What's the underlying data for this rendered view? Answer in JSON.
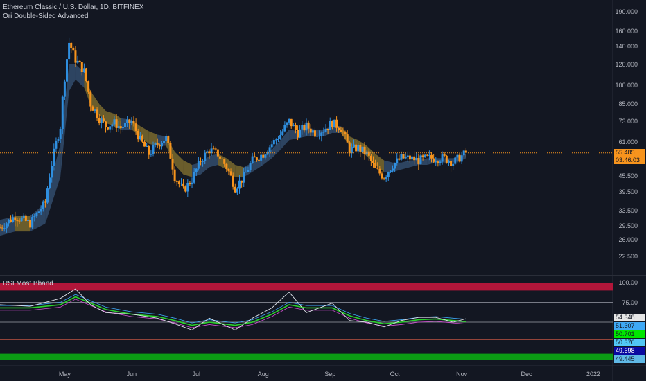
{
  "header": {
    "symbol": "Ethereum Classic / U.S. Dollar, 1D, BITFINEX",
    "indicator_main": "Ori Double-Sided Advanced",
    "indicator_sub": "RSI Most Bband"
  },
  "colors": {
    "background": "#131722",
    "bull": "#2f8fe0",
    "bear": "#f7941d",
    "cloud_bull": "#324c6c",
    "cloud_bear": "#7a6a2e",
    "rsi_line": "#e0e3eb",
    "rsi_upper_band": "#b2163a",
    "rsi_lower_band": "#0b9c14"
  },
  "price_axis": {
    "ticks": [
      "190.000",
      "160.000",
      "140.000",
      "120.000",
      "100.000",
      "85.000",
      "73.000",
      "61.000",
      "45.500",
      "39.500",
      "33.500",
      "29.500",
      "26.000",
      "22.500"
    ],
    "last_price": "55.485",
    "countdown": "03:46:03"
  },
  "rsi_axis": {
    "ticks": [
      "100.00",
      "75.00"
    ],
    "badges": [
      {
        "text": "54.348",
        "bg": "#e6e6e6",
        "fg": "#131722"
      },
      {
        "text": "51.307",
        "bg": "#3fa9f5",
        "fg": "#131722"
      },
      {
        "text": "50.701",
        "bg": "#00e600",
        "fg": "#131722"
      },
      {
        "text": "50.376",
        "bg": "#52c8f5",
        "fg": "#131722"
      },
      {
        "text": "49.698",
        "bg": "#0a0aa0",
        "fg": "#ffffff"
      },
      {
        "text": "49.445",
        "bg": "#5fb8e6",
        "fg": "#131722"
      }
    ]
  },
  "time_axis": {
    "ticks": [
      "May",
      "Jun",
      "Jul",
      "Aug",
      "Sep",
      "Oct",
      "Nov",
      "Dec",
      "2022"
    ]
  },
  "chart_data": [
    {
      "type": "candlestick",
      "title": "Ethereum Classic / U.S. Dollar, 1D, BITFINEX",
      "scale": "log",
      "ylim": [
        20,
        200
      ],
      "x_start": "2021-04-01",
      "x_end": "2021-11-03",
      "x": [
        "2021-04-01",
        "2021-04-08",
        "2021-04-15",
        "2021-04-22",
        "2021-04-29",
        "2021-05-03",
        "2021-05-06",
        "2021-05-10",
        "2021-05-13",
        "2021-05-17",
        "2021-05-20",
        "2021-05-24",
        "2021-05-27",
        "2021-06-01",
        "2021-06-05",
        "2021-06-09",
        "2021-06-13",
        "2021-06-17",
        "2021-06-21",
        "2021-06-25",
        "2021-06-29",
        "2021-07-03",
        "2021-07-07",
        "2021-07-11",
        "2021-07-15",
        "2021-07-19",
        "2021-07-23",
        "2021-07-27",
        "2021-08-01",
        "2021-08-05",
        "2021-08-09",
        "2021-08-13",
        "2021-08-17",
        "2021-08-21",
        "2021-08-25",
        "2021-08-29",
        "2021-09-02",
        "2021-09-06",
        "2021-09-10",
        "2021-09-14",
        "2021-09-18",
        "2021-09-22",
        "2021-09-26",
        "2021-09-30",
        "2021-10-04",
        "2021-10-08",
        "2021-10-12",
        "2021-10-16",
        "2021-10-20",
        "2021-10-24",
        "2021-10-28",
        "2021-11-01",
        "2021-11-03"
      ],
      "close": [
        29,
        32,
        30,
        36,
        70,
        145,
        125,
        113,
        85,
        75,
        70,
        72,
        69,
        73,
        62,
        55,
        60,
        63,
        45,
        40,
        44,
        52,
        57,
        55,
        49,
        41,
        45,
        52,
        55,
        60,
        65,
        73,
        66,
        70,
        66,
        68,
        72,
        69,
        57,
        58,
        55,
        48,
        45,
        50,
        53,
        53,
        52,
        53,
        53,
        53,
        51,
        54,
        55.485
      ],
      "series": [
        {
          "name": "Ori Double-Sided Advanced band high",
          "values": [
            31,
            32,
            32,
            36,
            60,
            120,
            120,
            112,
            95,
            85,
            80,
            78,
            75,
            74,
            70,
            67,
            65,
            64,
            56,
            52,
            50,
            51,
            54,
            55,
            53,
            50,
            49,
            51,
            54,
            57,
            62,
            68,
            67,
            69,
            68,
            68,
            70,
            70,
            64,
            62,
            59,
            55,
            52,
            51,
            51,
            52,
            52,
            53,
            53,
            53,
            53,
            54,
            55
          ]
        },
        {
          "name": "Ori Double-Sided Advanced band low",
          "values": [
            27,
            28,
            28,
            30,
            45,
            95,
            105,
            98,
            84,
            77,
            72,
            70,
            68,
            68,
            64,
            60,
            59,
            59,
            50,
            46,
            45,
            46,
            49,
            50,
            48,
            45,
            45,
            47,
            50,
            53,
            57,
            62,
            63,
            64,
            64,
            64,
            66,
            66,
            59,
            57,
            54,
            50,
            47,
            47,
            48,
            49,
            50,
            50,
            51,
            51,
            51,
            52,
            53
          ]
        }
      ]
    },
    {
      "type": "line",
      "title": "RSI Most Bband",
      "ylim": [
        0,
        100
      ],
      "x": [
        "2021-04-01",
        "2021-04-15",
        "2021-04-29",
        "2021-05-06",
        "2021-05-13",
        "2021-05-20",
        "2021-06-01",
        "2021-06-13",
        "2021-06-21",
        "2021-06-29",
        "2021-07-07",
        "2021-07-19",
        "2021-07-27",
        "2021-08-05",
        "2021-08-13",
        "2021-08-21",
        "2021-09-02",
        "2021-09-10",
        "2021-09-18",
        "2021-09-26",
        "2021-10-04",
        "2021-10-12",
        "2021-10-20",
        "2021-10-28",
        "2021-11-03"
      ],
      "series": [
        {
          "name": "RSI",
          "values": [
            72,
            70,
            80,
            92,
            72,
            62,
            60,
            55,
            48,
            40,
            55,
            40,
            55,
            68,
            88,
            62,
            74,
            52,
            50,
            44,
            52,
            56,
            56,
            50,
            54.348
          ]
        },
        {
          "name": "Average",
          "values": [
            68,
            68,
            72,
            82,
            74,
            66,
            60,
            57,
            52,
            46,
            50,
            46,
            50,
            60,
            72,
            68,
            68,
            58,
            52,
            48,
            50,
            53,
            54,
            52,
            50.701
          ]
        }
      ],
      "bands": {
        "upper": [
          90,
          100
        ],
        "mid_upper": 75,
        "mid_lower": 28,
        "lower": [
          2,
          10
        ]
      }
    }
  ]
}
